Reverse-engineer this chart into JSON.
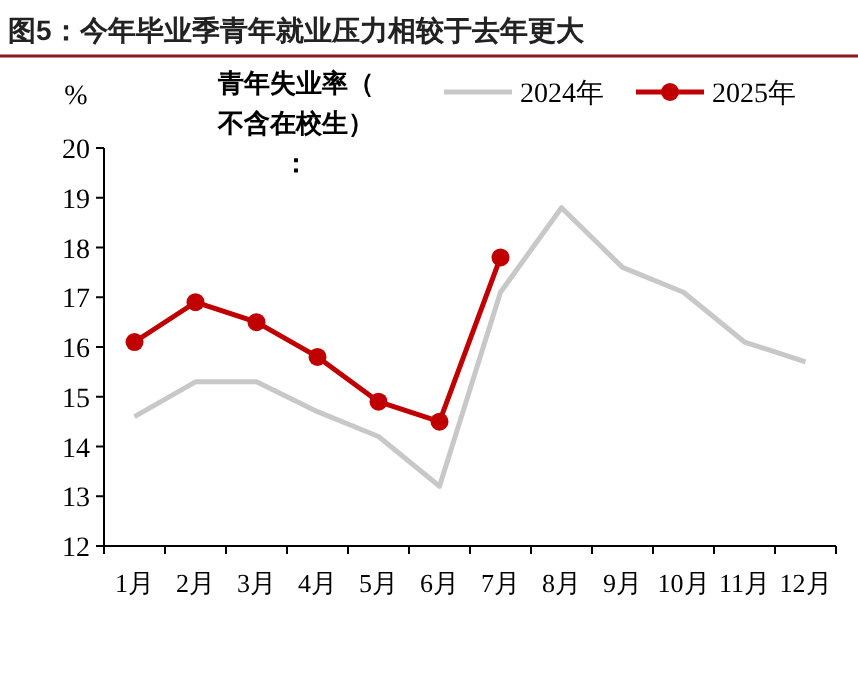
{
  "chart_data": {
    "type": "line",
    "title": "图5：今年毕业季青年就业压力相较于去年更大",
    "ylabel": "%",
    "legend_title": "青年失业率（不含在校生）：",
    "categories": [
      "1月",
      "2月",
      "3月",
      "4月",
      "5月",
      "6月",
      "7月",
      "8月",
      "9月",
      "10月",
      "11月",
      "12月"
    ],
    "series": [
      {
        "name": "2024年",
        "color": "#c8c8c8",
        "marker": "none",
        "values": [
          14.6,
          15.3,
          15.3,
          14.7,
          14.2,
          13.2,
          17.1,
          18.8,
          17.6,
          17.1,
          16.1,
          15.7
        ]
      },
      {
        "name": "2025年",
        "color": "#c00000",
        "marker": "circle",
        "values": [
          16.1,
          16.9,
          16.5,
          15.8,
          14.9,
          14.5,
          17.8,
          null,
          null,
          null,
          null,
          null
        ]
      }
    ],
    "ylim": [
      12,
      20
    ],
    "yticks": [
      12,
      13,
      14,
      15,
      16,
      17,
      18,
      19,
      20
    ],
    "grid": false,
    "legend": "top"
  }
}
